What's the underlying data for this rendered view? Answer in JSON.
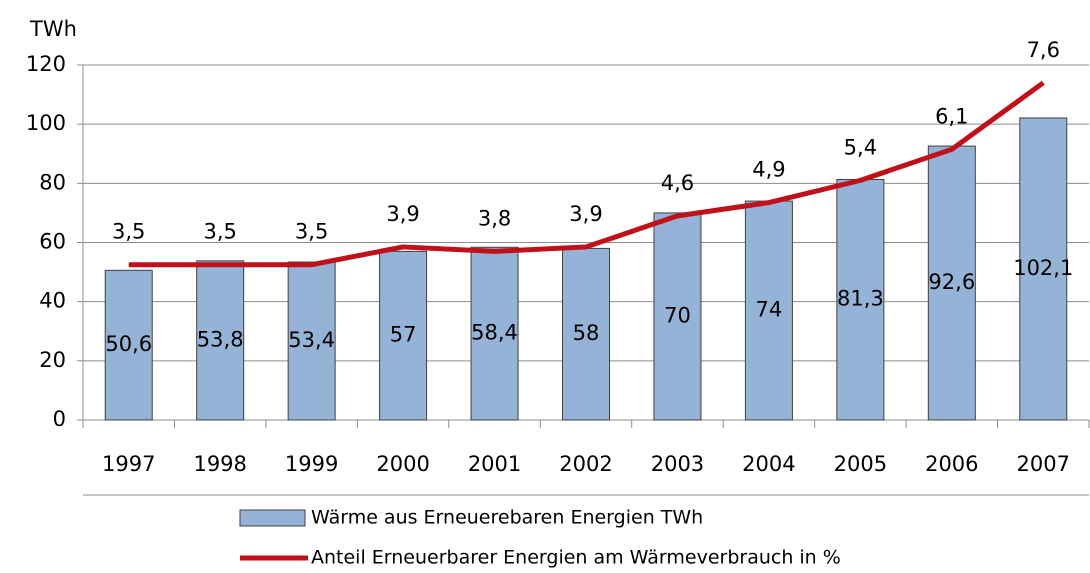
{
  "chart_data": {
    "type": "bar_line",
    "y_axis_label": "TWh",
    "categories": [
      "1997",
      "1998",
      "1999",
      "2000",
      "2001",
      "2002",
      "2003",
      "2004",
      "2005",
      "2006",
      "2007"
    ],
    "series": [
      {
        "name": "Wärme aus Erneuerebaren Energien TWh",
        "type": "bar",
        "color": "#95b3d7",
        "values": [
          50.6,
          53.8,
          53.4,
          57,
          58.4,
          58,
          70,
          74,
          81.3,
          92.6,
          102.1
        ],
        "value_labels": [
          "50,6",
          "53,8",
          "53,4",
          "57",
          "58,4",
          "58",
          "70",
          "74",
          "81,3",
          "92,6",
          "102,1"
        ]
      },
      {
        "name": "Anteil Erneuerbarer Energien am Wärmeverbrauch in %",
        "type": "line",
        "color": "#c0101a",
        "axis": "y2",
        "values": [
          3.5,
          3.5,
          3.5,
          3.9,
          3.8,
          3.9,
          4.6,
          4.9,
          5.4,
          6.1,
          7.6
        ],
        "value_labels": [
          "3,5",
          "3,5",
          "3,5",
          "3,9",
          "3,8",
          "3,9",
          "4,6",
          "4,9",
          "5,4",
          "6,1",
          "7,6"
        ]
      }
    ],
    "ylim": [
      0,
      120
    ],
    "yticks": [
      0,
      20,
      40,
      60,
      80,
      100,
      120
    ],
    "y2lim": [
      0,
      8
    ],
    "grid": true
  }
}
